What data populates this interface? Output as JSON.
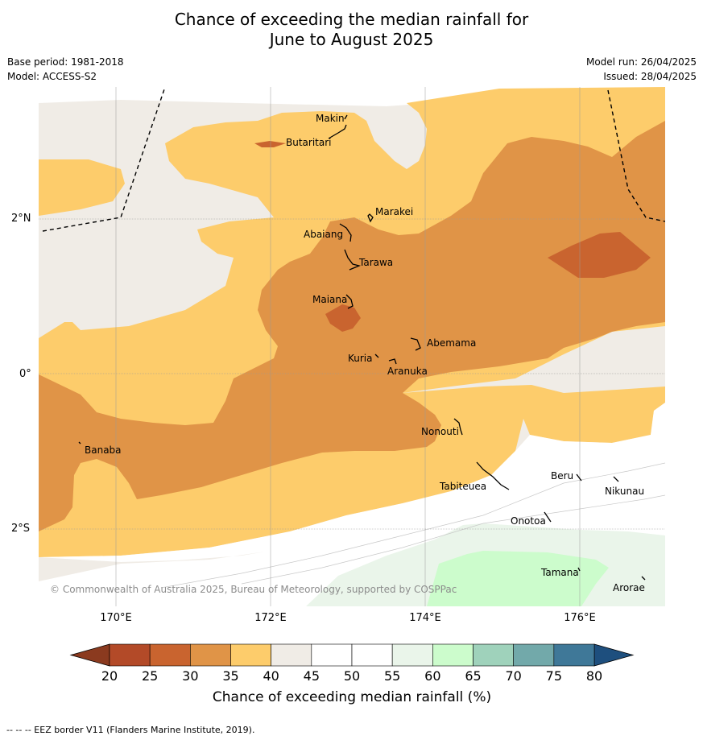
{
  "title_line1": "Chance of exceeding the median rainfall for",
  "title_line2": "June to August 2025",
  "base_period": "Base period: 1981-2018",
  "model": "Model: ACCESS-S2",
  "model_run": "Model run: 26/04/2025",
  "issued": "Issued: 28/04/2025",
  "lat_labels": [
    "2°N",
    "0°",
    "2°S"
  ],
  "lon_labels": [
    "170°E",
    "172°E",
    "174°E",
    "176°E"
  ],
  "islands": {
    "makin": "Makin",
    "butaritari": "Butaritari",
    "marakei": "Marakei",
    "abaiang": "Abaiang",
    "tarawa": "Tarawa",
    "maiana": "Maiana",
    "abemama": "Abemama",
    "kuria": "Kuria",
    "aranuka": "Aranuka",
    "banaba": "Banaba",
    "nonouti": "Nonouti",
    "tabiteuea": "Tabiteuea",
    "beru": "Beru",
    "nikunau": "Nikunau",
    "onotoa": "Onotoa",
    "tamana": "Tamana",
    "arorae": "Arorae"
  },
  "copyright": "© Commonwealth of Australia 2025, Bureau of Meteorology, supported by COSPPac",
  "colorbar": {
    "ticks": [
      "20",
      "25",
      "30",
      "35",
      "40",
      "45",
      "50",
      "55",
      "60",
      "65",
      "70",
      "75",
      "80"
    ],
    "colors": [
      "#b34a28",
      "#c9642f",
      "#e09447",
      "#fdcc6b",
      "#f0ece6",
      "#ffffff",
      "#ffffff",
      "#eaf5ea",
      "#ccfccc",
      "#9fd2bb",
      "#72a9aa",
      "#3f7898"
    ],
    "low_color": "#8b3a1f",
    "high_color": "#1e4f7e",
    "label": "Chance of exceeding median rainfall (%)"
  },
  "footer": "--  --  -- EEZ border V11 (Flanders Marine Institute, 2019)."
}
